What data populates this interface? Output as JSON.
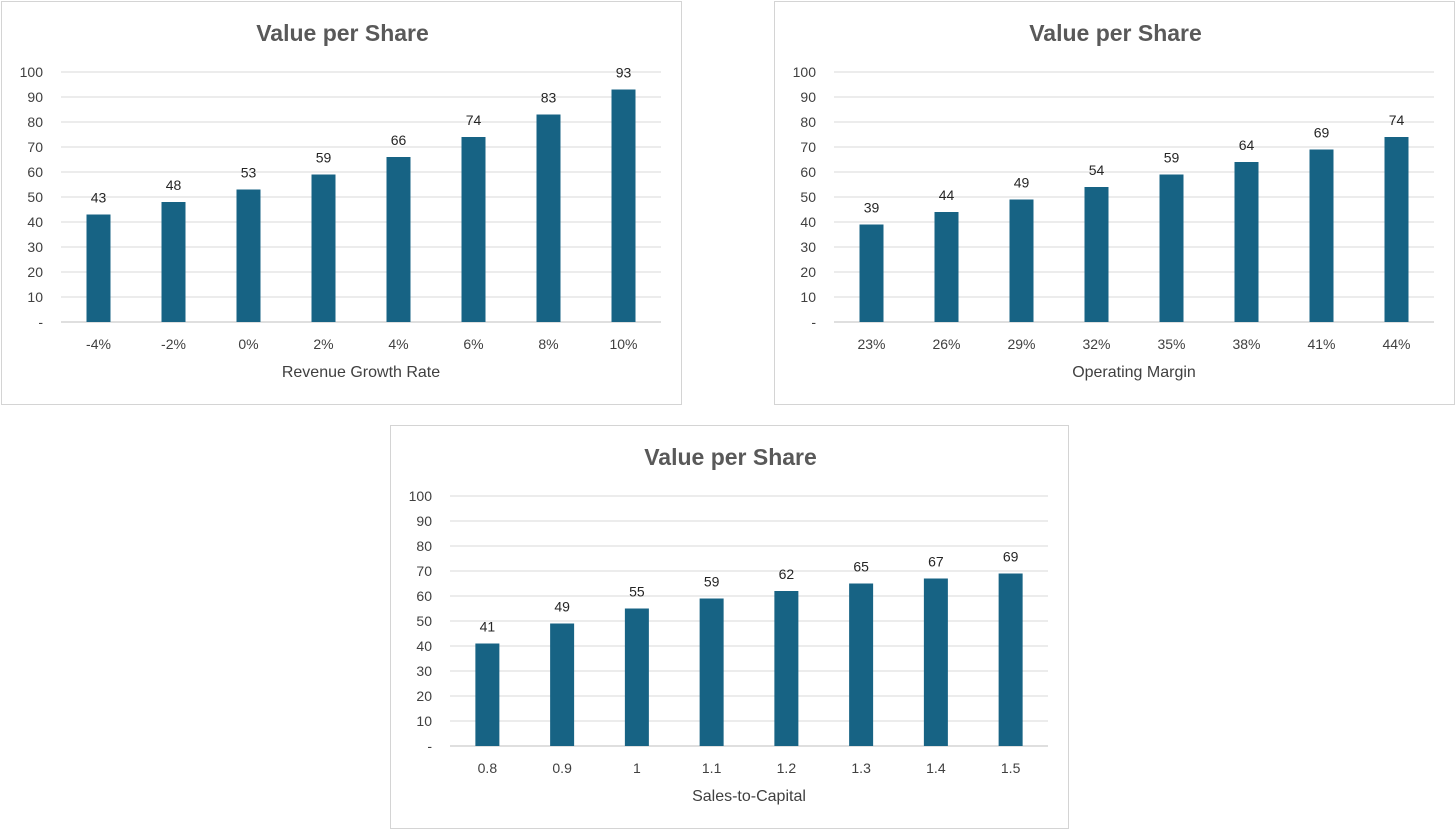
{
  "chart_data": [
    {
      "type": "bar",
      "title": "Value per Share",
      "xlabel": "Revenue Growth Rate",
      "ylabel": "",
      "categories": [
        "-4%",
        "-2%",
        "0%",
        "2%",
        "4%",
        "6%",
        "8%",
        "10%"
      ],
      "values": [
        43,
        48,
        53,
        59,
        66,
        74,
        83,
        93
      ],
      "ylim": [
        0,
        100
      ],
      "yticks": [
        "-",
        "10",
        "20",
        "30",
        "40",
        "50",
        "60",
        "70",
        "80",
        "90",
        "100"
      ],
      "grid": true,
      "legend": "none",
      "bar_color": "#176384"
    },
    {
      "type": "bar",
      "title": "Value per Share",
      "xlabel": "Operating Margin",
      "ylabel": "",
      "categories": [
        "23%",
        "26%",
        "29%",
        "32%",
        "35%",
        "38%",
        "41%",
        "44%"
      ],
      "values": [
        39,
        44,
        49,
        54,
        59,
        64,
        69,
        74
      ],
      "ylim": [
        0,
        100
      ],
      "yticks": [
        "-",
        "10",
        "20",
        "30",
        "40",
        "50",
        "60",
        "70",
        "80",
        "90",
        "100"
      ],
      "grid": true,
      "legend": "none",
      "bar_color": "#176384"
    },
    {
      "type": "bar",
      "title": "Value per Share",
      "xlabel": "Sales-to-Capital",
      "ylabel": "",
      "categories": [
        "0.8",
        "0.9",
        "1",
        "1.1",
        "1.2",
        "1.3",
        "1.4",
        "1.5"
      ],
      "values": [
        41,
        49,
        55,
        59,
        62,
        65,
        67,
        69
      ],
      "ylim": [
        0,
        100
      ],
      "yticks": [
        "-",
        "10",
        "20",
        "30",
        "40",
        "50",
        "60",
        "70",
        "80",
        "90",
        "100"
      ],
      "grid": true,
      "legend": "none",
      "bar_color": "#176384"
    }
  ]
}
